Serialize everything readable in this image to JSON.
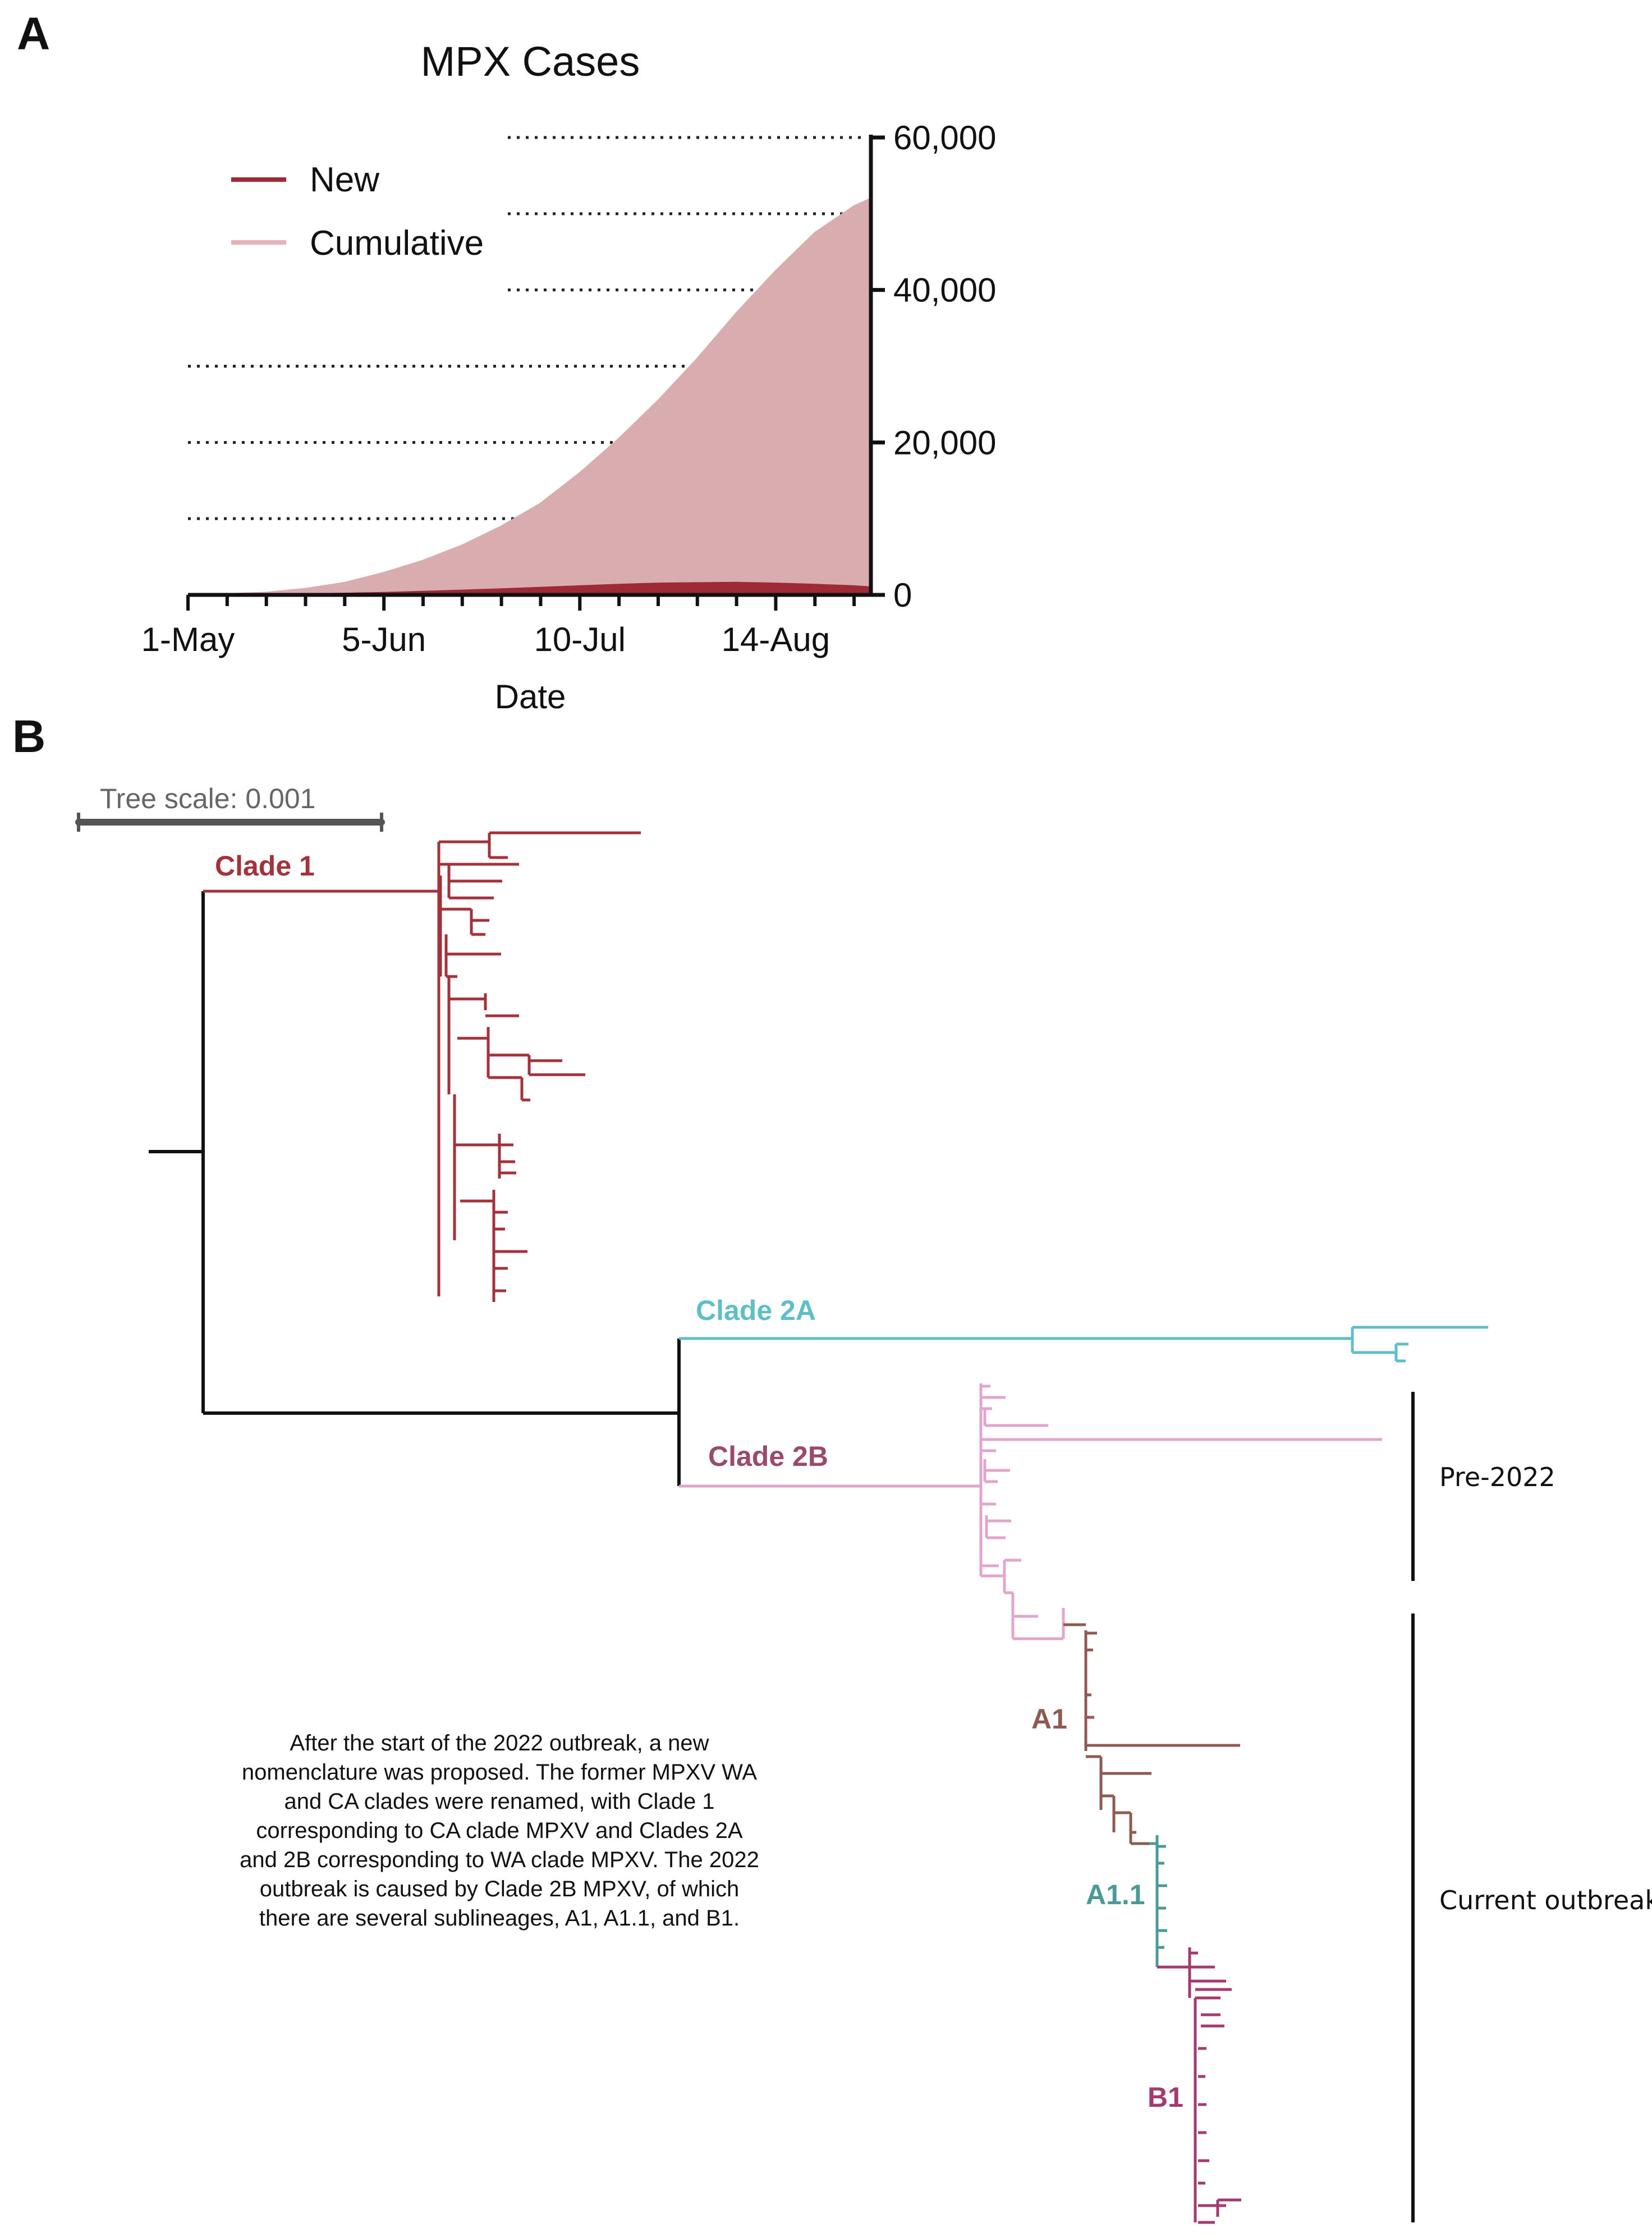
{
  "panels": {
    "a": "A",
    "b": "B"
  },
  "chart_data": {
    "type": "area",
    "title": "MPX Cases",
    "xlabel": "Date",
    "ylabel": "",
    "ylim": [
      0,
      60000
    ],
    "yticks": [
      0,
      20000,
      40000,
      60000
    ],
    "ytick_labels": [
      "0",
      "20,000",
      "40,000",
      "60,000"
    ],
    "y_axis_side": "right",
    "x_range_days": [
      0,
      122
    ],
    "xticks": [
      0,
      35,
      70,
      105
    ],
    "xtick_labels": [
      "1-May",
      "5-Jun",
      "10-Jul",
      "14-Aug"
    ],
    "legend": {
      "placement": "top-left",
      "entries": [
        "New",
        "Cumulative"
      ]
    },
    "grid": "dotted reference lines at 10,000 intervals",
    "gridlines": [
      10000,
      20000,
      30000,
      40000,
      50000,
      60000
    ],
    "series": [
      {
        "name": "Cumulative",
        "color": "#d9acb0",
        "x": [
          0,
          7,
          14,
          21,
          28,
          35,
          42,
          49,
          56,
          63,
          70,
          77,
          84,
          91,
          98,
          105,
          112,
          119,
          122
        ],
        "values": [
          0,
          100,
          300,
          800,
          1600,
          2900,
          4500,
          6500,
          9000,
          12000,
          16000,
          20500,
          25500,
          31000,
          37000,
          42500,
          47500,
          51000,
          52000
        ]
      },
      {
        "name": "New",
        "color": "#9e2a36",
        "x": [
          0,
          7,
          14,
          21,
          28,
          35,
          42,
          49,
          56,
          63,
          70,
          77,
          84,
          91,
          98,
          105,
          112,
          119,
          122
        ],
        "values": [
          0,
          20,
          40,
          90,
          180,
          280,
          420,
          580,
          750,
          950,
          1150,
          1350,
          1500,
          1550,
          1600,
          1500,
          1350,
          1150,
          1000
        ]
      }
    ]
  },
  "tree": {
    "scale_label": "Tree scale: 0.001",
    "clades": {
      "clade1": {
        "label": "Clade 1",
        "color": "#a3323b"
      },
      "clade2a": {
        "label": "Clade 2A",
        "color": "#5fbec8"
      },
      "clade2b": {
        "label": "Clade 2B",
        "color": "#e2a6cc",
        "label_color": "#9a4a6a"
      },
      "a1": {
        "label": "A1",
        "color": "#8f5a50"
      },
      "a11": {
        "label": "A1.1",
        "color": "#4a9a96"
      },
      "b1": {
        "label": "B1",
        "color": "#a33a70"
      }
    },
    "groups": {
      "pre2022": "Pre-2022",
      "current": "Current outbreak"
    }
  },
  "caption": "After the start of the 2022 outbreak, a new nomenclature was proposed. The former MPXV WA and CA clades were renamed, with Clade 1 corresponding to CA clade MPXV and Clades 2A and 2B corresponding to WA clade MPXV. The 2022 outbreak is caused by Clade 2B MPXV, of which there are several sublineages, A1, A1.1, and B1."
}
